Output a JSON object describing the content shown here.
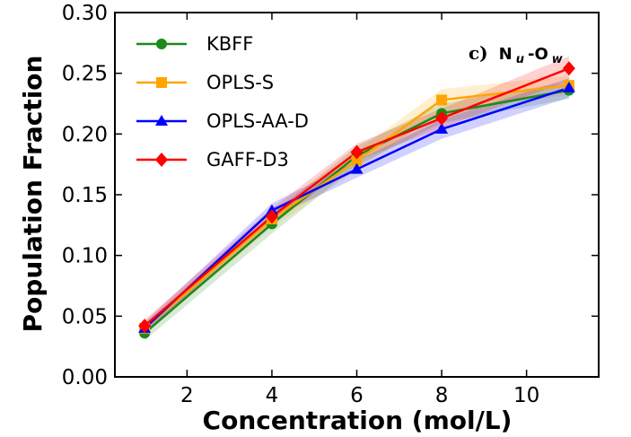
{
  "chart_data": {
    "type": "line",
    "title": "",
    "xlabel": "Concentration (mol/L)",
    "ylabel": "Population Fraction",
    "xlim": [
      0.3,
      11.7
    ],
    "ylim": [
      0.0,
      0.3
    ],
    "xticks": [
      2,
      4,
      6,
      8,
      10
    ],
    "yticks": [
      0.0,
      0.05,
      0.1,
      0.15,
      0.2,
      0.25,
      0.3
    ],
    "ytick_labels": [
      "0.00",
      "0.05",
      "0.10",
      "0.15",
      "0.20",
      "0.25",
      "0.30"
    ],
    "legend_position": "top-left",
    "annotation": {
      "prefix": "c)",
      "main": "N",
      "sub1": "u",
      "mid": "-O",
      "sub2": "w"
    },
    "x": [
      1,
      4,
      6,
      8,
      11
    ],
    "series": [
      {
        "name": "KBFF",
        "color": "#1a8a1a",
        "marker": "circle",
        "values": [
          0.036,
          0.126,
          0.182,
          0.217,
          0.236
        ],
        "band": [
          0.006,
          0.008,
          0.008,
          0.008,
          0.007
        ]
      },
      {
        "name": "OPLS-S",
        "color": "#ffa500",
        "marker": "square",
        "values": [
          0.04,
          0.13,
          0.178,
          0.228,
          0.24
        ],
        "band": [
          0.005,
          0.007,
          0.008,
          0.009,
          0.008
        ]
      },
      {
        "name": "OPLS-AA-D",
        "color": "#0000ff",
        "marker": "triangle",
        "values": [
          0.04,
          0.137,
          0.171,
          0.204,
          0.238
        ],
        "band": [
          0.005,
          0.006,
          0.007,
          0.008,
          0.008
        ]
      },
      {
        "name": "GAFF-D3",
        "color": "#ff0000",
        "marker": "diamond",
        "values": [
          0.042,
          0.132,
          0.185,
          0.213,
          0.254
        ],
        "band": [
          0.005,
          0.007,
          0.007,
          0.008,
          0.01
        ]
      }
    ]
  }
}
